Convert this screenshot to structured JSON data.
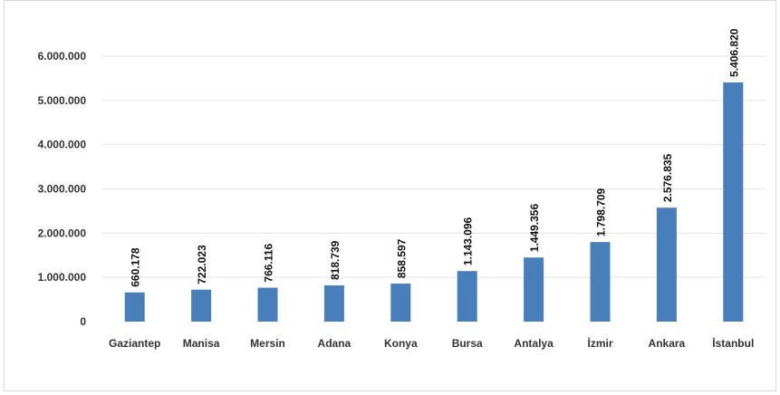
{
  "chart_data": {
    "type": "bar",
    "title": "",
    "xlabel": "",
    "ylabel": "",
    "categories": [
      "Gaziantep",
      "Manisa",
      "Mersin",
      "Adana",
      "Konya",
      "Bursa",
      "Antalya",
      "İzmir",
      "Ankara",
      "İstanbul"
    ],
    "values": [
      660178,
      722023,
      766116,
      818739,
      858597,
      1143096,
      1449356,
      1798709,
      2576835,
      5406820
    ],
    "value_labels": [
      "660.178",
      "722.023",
      "766.116",
      "818.739",
      "858.597",
      "1.143.096",
      "1.449.356",
      "1.798.709",
      "2.576.835",
      "5.406.820"
    ],
    "yticks": [
      0,
      1000000,
      2000000,
      3000000,
      4000000,
      5000000,
      6000000
    ],
    "ytick_labels": [
      "0",
      "1.000.000",
      "2.000.000",
      "3.000.000",
      "4.000.000",
      "5.000.000",
      "6.000.000"
    ],
    "ylim": [
      0,
      6000000
    ],
    "grid": true,
    "legend": "none",
    "bar_color": "#4a7ebb",
    "grid_color": "#e3e3e3"
  }
}
